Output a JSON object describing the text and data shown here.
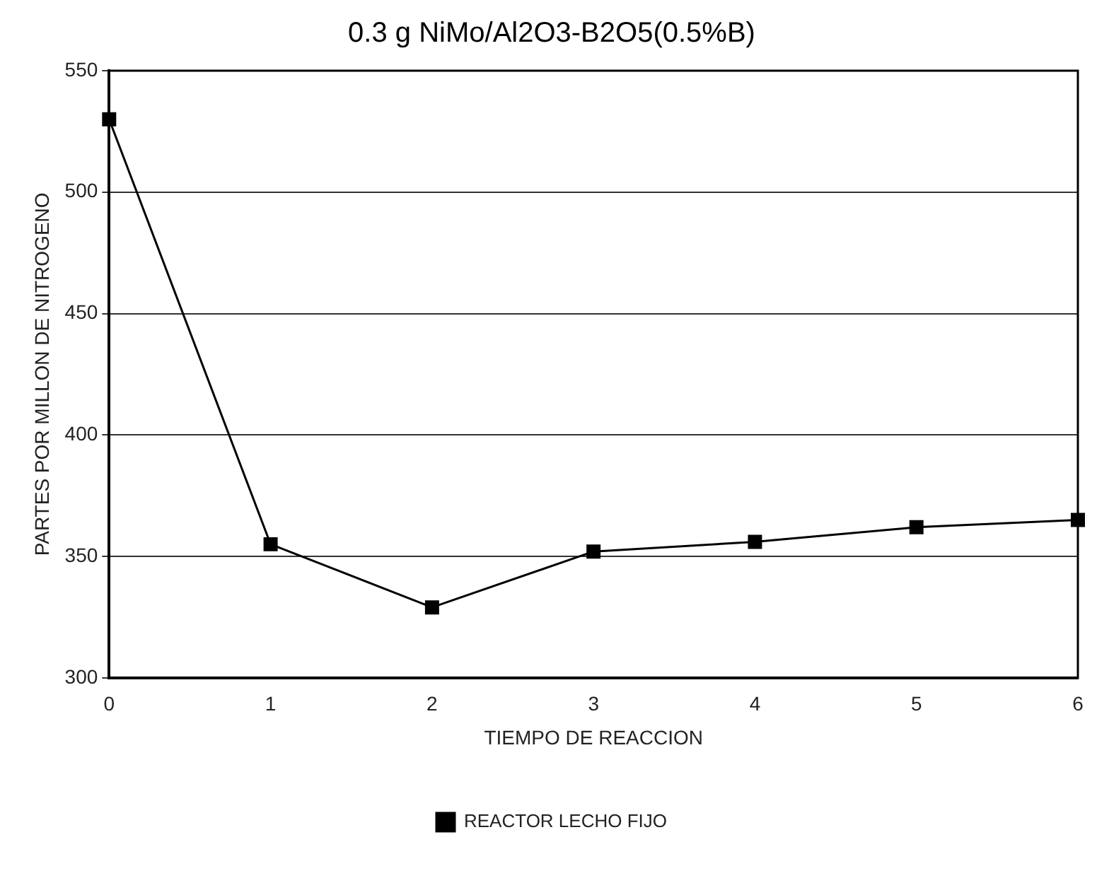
{
  "chart_data": {
    "type": "line",
    "title": "0.3 g NiMo/Al2O3-B2O5(0.5%B)",
    "xlabel": "TIEMPO DE REACCION",
    "ylabel": "PARTES POR MILLON DE NITROGENO",
    "categories": [
      "0",
      "1",
      "2",
      "3",
      "4",
      "5",
      "6"
    ],
    "series": [
      {
        "name": "REACTOR LECHO FIJO",
        "color": "#000000",
        "values": [
          530,
          355,
          329,
          352,
          356,
          362,
          365
        ]
      }
    ],
    "ylim": [
      300,
      550
    ],
    "yticks": [
      300,
      350,
      400,
      450,
      500,
      550
    ],
    "grid": "y",
    "legend": "bottom",
    "marker": "square",
    "line_style": "solid"
  }
}
